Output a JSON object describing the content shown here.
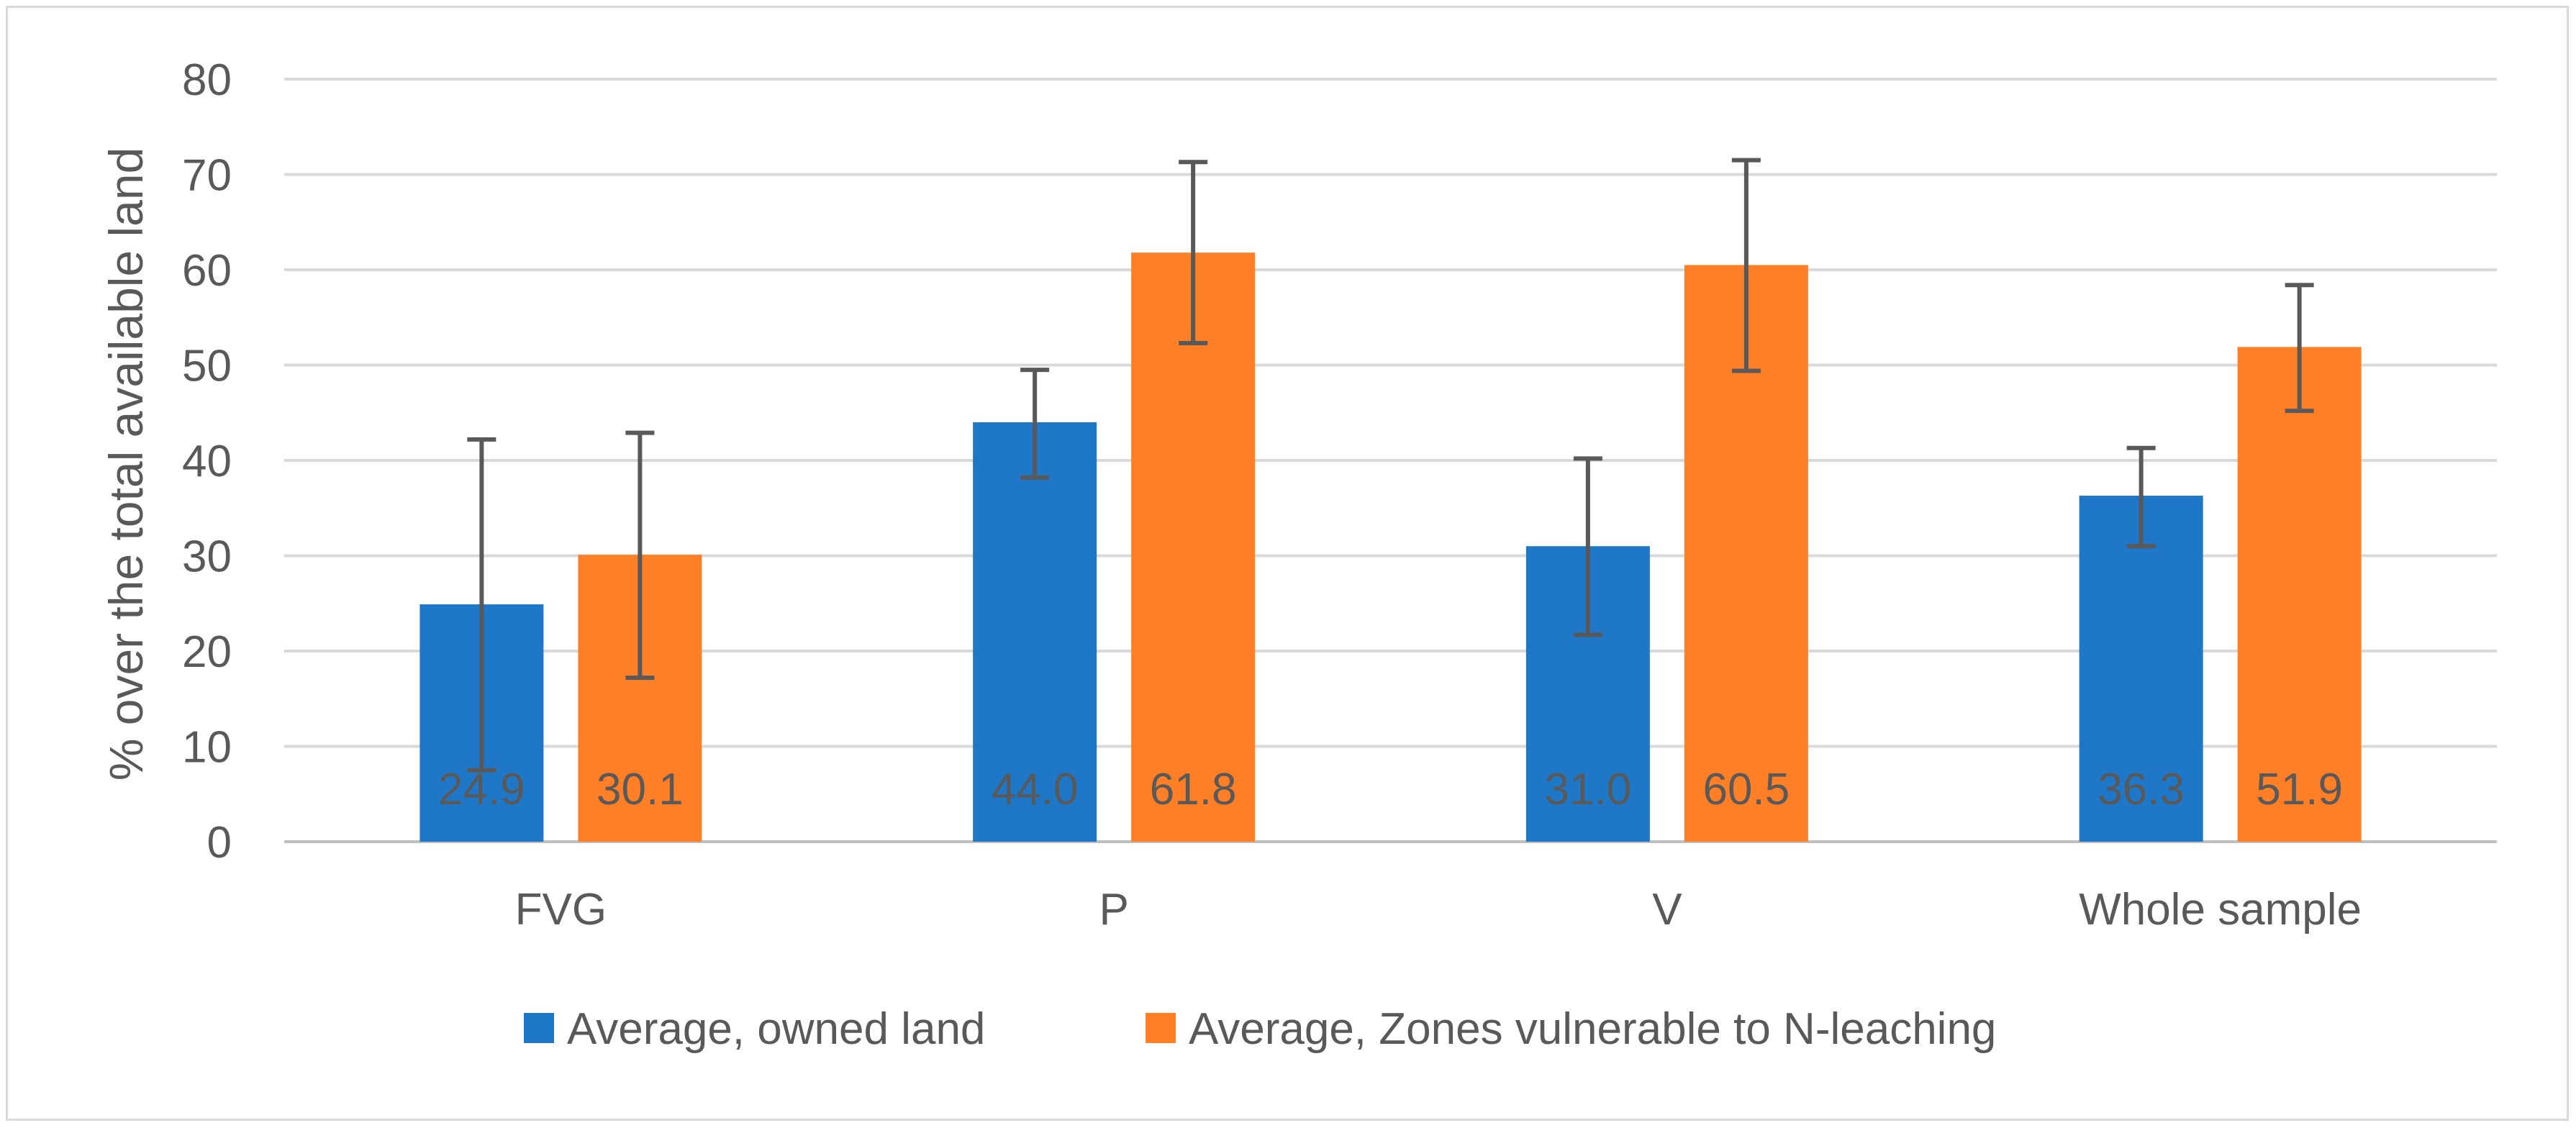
{
  "chart_data": {
    "type": "bar",
    "title": "",
    "xlabel": "",
    "ylabel": "% over the total available land",
    "ylim": [
      0,
      80
    ],
    "yticks": [
      0,
      10,
      20,
      30,
      40,
      50,
      60,
      70,
      80
    ],
    "grid": true,
    "legend_position": "bottom",
    "categories": [
      "FVG",
      "P",
      "V",
      "Whole sample"
    ],
    "series": [
      {
        "name": "Average, owned land",
        "color": "#1f77c7",
        "values": [
          24.9,
          44.0,
          31.0,
          36.3
        ],
        "labels": [
          "24.9",
          "44.0",
          "31.0",
          "36.3"
        ],
        "error_low": [
          7.5,
          38.2,
          21.7,
          31.0
        ],
        "error_high": [
          42.2,
          49.5,
          40.2,
          41.3
        ]
      },
      {
        "name": "Average, Zones vulnerable to N-leaching",
        "color": "#ff7f27",
        "values": [
          30.1,
          61.8,
          60.5,
          51.9
        ],
        "labels": [
          "30.1",
          "61.8",
          "60.5",
          "51.9"
        ],
        "error_low": [
          17.2,
          52.3,
          49.4,
          45.2
        ],
        "error_high": [
          42.9,
          71.3,
          71.5,
          58.4
        ]
      }
    ]
  }
}
